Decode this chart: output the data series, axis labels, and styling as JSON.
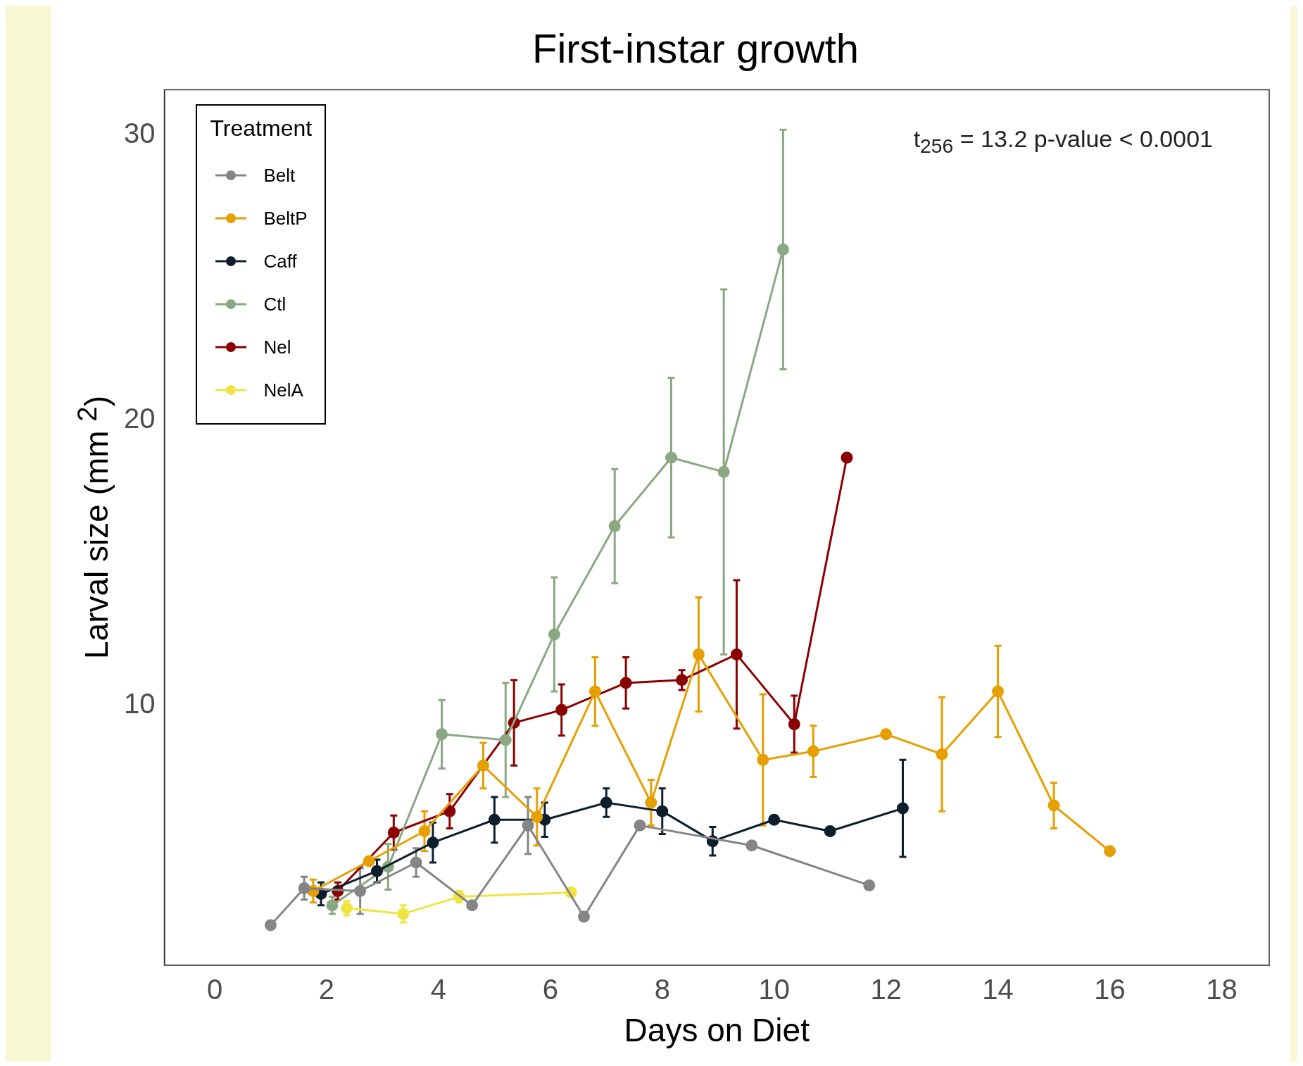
{
  "chart_data": {
    "type": "line",
    "title": "First-instar growth",
    "xlabel": "Days on Diet",
    "ylabel": "Larval size (mm $^{2}$)",
    "legend_title": "Treatment",
    "legend": "top left",
    "grid": false,
    "marker": "circle",
    "line_style": "solid",
    "xlim": [
      -0.9,
      18.85
    ],
    "xticks": [
      0,
      2,
      4,
      6,
      8,
      10,
      12,
      14,
      16,
      18
    ],
    "ylim": [
      0.9,
      31.6
    ],
    "yticks": [
      10,
      20,
      30
    ],
    "annotations": [
      "t$_{256}$ = 13.2 p-value < 0.0001"
    ],
    "series": [
      {
        "name": "Belt",
        "color": "#858585",
        "x": [
          1.0,
          1.6,
          2.6,
          3.6,
          4.6,
          5.6,
          6.6,
          7.6,
          9.6,
          11.7
        ],
        "values": [
          2.3,
          3.6,
          3.5,
          4.5,
          3.0,
          5.8,
          2.6,
          5.8,
          5.1,
          3.7
        ],
        "errors": [
          null,
          0.4,
          0.8,
          0.5,
          null,
          1.0,
          null,
          null,
          null,
          null
        ]
      },
      {
        "name": "BeltP",
        "color": "#e69f00",
        "x": [
          1.76,
          2.76,
          3.75,
          4.8,
          5.76,
          6.8,
          7.8,
          8.65,
          9.8,
          10.7,
          12.0,
          13.0,
          14.0,
          15.0,
          16.0
        ],
        "values": [
          3.5,
          4.55,
          5.6,
          7.9,
          6.1,
          10.5,
          6.6,
          11.8,
          8.1,
          8.4,
          9.0,
          8.3,
          10.5,
          6.5,
          4.9
        ],
        "errors": [
          0.4,
          null,
          0.7,
          0.8,
          1.0,
          1.2,
          0.8,
          2.0,
          2.3,
          0.9,
          null,
          2.0,
          1.6,
          0.8,
          null
        ]
      },
      {
        "name": "Caff",
        "color": "#0d1f2d",
        "x": [
          1.9,
          2.9,
          3.9,
          5.0,
          5.9,
          7.0,
          8.0,
          8.9,
          10.0,
          11.0,
          12.3
        ],
        "values": [
          3.4,
          4.2,
          5.2,
          6.0,
          6.0,
          6.6,
          6.3,
          5.25,
          6.0,
          5.6,
          6.4
        ],
        "errors": [
          0.4,
          0.4,
          0.7,
          0.8,
          0.6,
          0.5,
          0.8,
          0.5,
          null,
          null,
          1.7
        ]
      },
      {
        "name": "Ctl",
        "color": "#8aa882",
        "x": [
          2.1,
          3.1,
          4.06,
          5.2,
          6.07,
          7.15,
          8.16,
          9.1,
          10.16
        ],
        "values": [
          3.0,
          4.35,
          9.0,
          8.8,
          12.5,
          16.3,
          18.7,
          18.2,
          26.0
        ],
        "errors": [
          0.3,
          0.8,
          1.2,
          2.0,
          2.0,
          2.0,
          2.8,
          6.4,
          4.2
        ]
      },
      {
        "name": "Nel",
        "color": "#8b0000",
        "x": [
          2.2,
          3.2,
          4.2,
          5.35,
          6.2,
          7.35,
          8.35,
          9.33,
          10.36,
          11.3
        ],
        "values": [
          3.5,
          5.55,
          6.3,
          9.4,
          9.85,
          10.8,
          10.9,
          11.8,
          9.35,
          18.7
        ],
        "errors": [
          0.3,
          0.6,
          0.6,
          1.5,
          0.9,
          0.9,
          0.35,
          2.6,
          1.0,
          null
        ]
      },
      {
        "name": "NelA",
        "color": "#f0e442",
        "x": [
          2.36,
          3.37,
          4.37,
          6.37
        ],
        "values": [
          2.9,
          2.7,
          3.3,
          3.45
        ],
        "errors": [
          0.25,
          0.3,
          0.2,
          null
        ]
      }
    ]
  }
}
